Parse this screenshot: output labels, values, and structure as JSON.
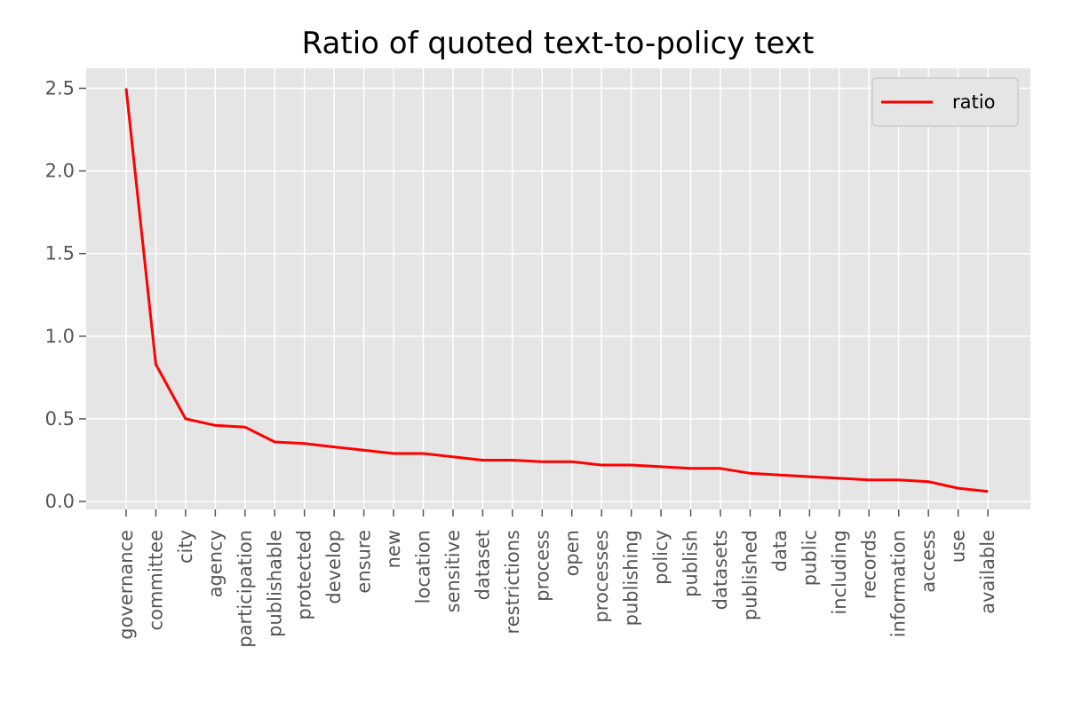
{
  "chart_data": {
    "type": "line",
    "title": "Ratio of quoted text-to-policy text",
    "xlabel": "",
    "ylabel": "",
    "categories": [
      "governance",
      "committee",
      "city",
      "agency",
      "participation",
      "publishable",
      "protected",
      "develop",
      "ensure",
      "new",
      "location",
      "sensitive",
      "dataset",
      "restrictions",
      "process",
      "open",
      "processes",
      "publishing",
      "policy",
      "publish",
      "datasets",
      "published",
      "data",
      "public",
      "including",
      "records",
      "information",
      "access",
      "use",
      "available"
    ],
    "series": [
      {
        "name": "ratio",
        "color": "#ff0000",
        "values": [
          2.5,
          0.83,
          0.5,
          0.46,
          0.45,
          0.36,
          0.35,
          0.33,
          0.31,
          0.29,
          0.29,
          0.27,
          0.25,
          0.25,
          0.24,
          0.24,
          0.22,
          0.22,
          0.21,
          0.2,
          0.2,
          0.17,
          0.16,
          0.15,
          0.14,
          0.13,
          0.13,
          0.12,
          0.08,
          0.06
        ]
      }
    ],
    "ylim": [
      -0.04,
      2.62
    ],
    "yticks": [
      "0.0",
      "0.5",
      "1.0",
      "1.5",
      "2.0",
      "2.5"
    ],
    "ytick_values": [
      0,
      0.5,
      1.0,
      1.5,
      2.0,
      2.5
    ],
    "grid": true,
    "legend_position": "top-right",
    "colors": {
      "plot_background": "#e5e5e5",
      "grid": "#ffffff",
      "tick_text": "#555555"
    }
  }
}
